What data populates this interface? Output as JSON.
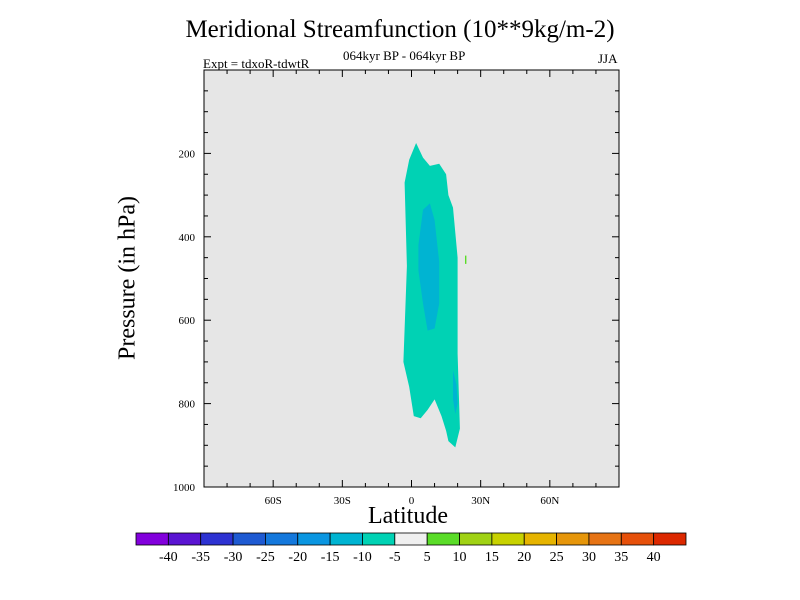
{
  "chart_data": {
    "type": "contour",
    "title": "Meridional Streamfunction (10**9kg/m-2)",
    "subtitle": "064kyr BP - 064kyr BP",
    "left_label": "Expt = tdxoR-tdwtR",
    "right_label": "JJA",
    "xlabel": "Latitude",
    "ylabel": "Pressure (in hPa)",
    "xlim": [
      -90,
      90
    ],
    "ylim": [
      1000,
      0
    ],
    "x_ticks": [
      {
        "value": -60,
        "label": "60S"
      },
      {
        "value": -30,
        "label": "30S"
      },
      {
        "value": 0,
        "label": "0"
      },
      {
        "value": 30,
        "label": "30N"
      },
      {
        "value": 60,
        "label": "60N"
      }
    ],
    "y_ticks": [
      {
        "value": 200,
        "label": "200"
      },
      {
        "value": 400,
        "label": "400"
      },
      {
        "value": 600,
        "label": "600"
      },
      {
        "value": 800,
        "label": "800"
      },
      {
        "value": 1000,
        "label": "1000"
      }
    ],
    "background_color": "#e6e6e6",
    "colorbar": {
      "labels": [
        "-40",
        "-35",
        "-30",
        "-25",
        "-20",
        "-15",
        "-10",
        "-5",
        "5",
        "10",
        "15",
        "20",
        "25",
        "30",
        "35",
        "40"
      ],
      "colors": [
        "#8200dc",
        "#5a14d2",
        "#2d32d2",
        "#1e5ad2",
        "#1478dc",
        "#0a96e1",
        "#00b4d2",
        "#00d2b4",
        "#f0f0f0",
        "#5adc28",
        "#a0d214",
        "#c8d200",
        "#e6b400",
        "#e6960a",
        "#e67314",
        "#e6500a",
        "#dc2800"
      ]
    },
    "regions": [
      {
        "name": "contour-fill-minus5-to-minus10",
        "value_band": "-10 to -5",
        "color": "#00d2b4",
        "outline": [
          [
            -3.5,
            700
          ],
          [
            -2,
            470
          ],
          [
            -3,
            270
          ],
          [
            -1,
            215
          ],
          [
            2,
            175
          ],
          [
            5,
            210
          ],
          [
            8,
            230
          ],
          [
            12,
            225
          ],
          [
            15,
            250
          ],
          [
            16,
            300
          ],
          [
            18,
            330
          ],
          [
            20,
            450
          ],
          [
            20,
            680
          ],
          [
            21,
            860
          ],
          [
            19,
            905
          ],
          [
            16,
            890
          ],
          [
            15,
            865
          ],
          [
            13,
            830
          ],
          [
            10,
            790
          ],
          [
            7,
            815
          ],
          [
            4,
            835
          ],
          [
            1,
            830
          ],
          [
            -1,
            760
          ]
        ]
      },
      {
        "name": "contour-fill-minus10-to-minus15",
        "value_band": "-15 to -10",
        "color": "#00b4d2",
        "outline": [
          [
            3,
            420
          ],
          [
            5,
            335
          ],
          [
            8,
            320
          ],
          [
            10,
            360
          ],
          [
            12,
            460
          ],
          [
            12,
            560
          ],
          [
            10,
            620
          ],
          [
            7,
            625
          ],
          [
            5,
            560
          ],
          [
            3,
            480
          ]
        ]
      },
      {
        "name": "contour-fill-minus10-to-minus15-lower",
        "value_band": "-15 to -10",
        "color": "#00b4d2",
        "outline": [
          [
            18,
            720
          ],
          [
            19.5,
            755
          ],
          [
            20,
            800
          ],
          [
            19,
            825
          ],
          [
            18,
            790
          ]
        ]
      },
      {
        "name": "contour-fill-5-to-10",
        "value_band": "5 to 10",
        "color": "#5adc28",
        "outline": [
          [
            23.2,
            445
          ],
          [
            23.8,
            445
          ],
          [
            23.8,
            465
          ],
          [
            23.2,
            465
          ]
        ]
      }
    ]
  }
}
